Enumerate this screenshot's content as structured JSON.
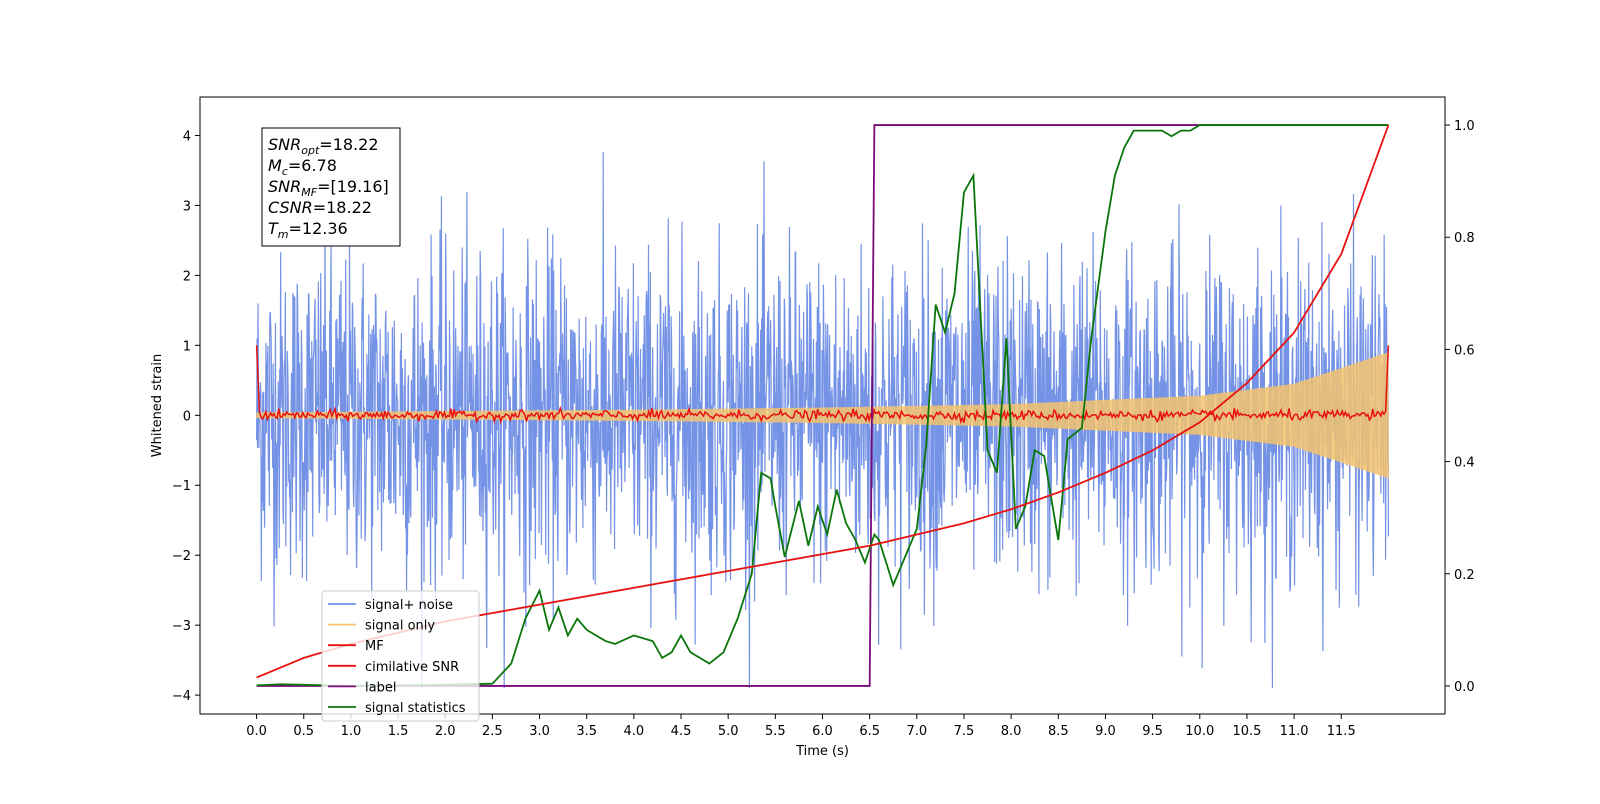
{
  "chart_data": {
    "type": "line",
    "xlabel": "Time (s)",
    "ylabel": "Whitened strain",
    "xlim": [
      -0.6,
      12.6
    ],
    "ylim_left": [
      -4.27,
      4.55
    ],
    "ylim_right": [
      -0.05,
      1.05
    ],
    "x_ticks": [
      "0.0",
      "0.5",
      "1.0",
      "1.5",
      "2.0",
      "2.5",
      "3.0",
      "3.5",
      "4.0",
      "4.5",
      "5.0",
      "5.5",
      "6.0",
      "6.5",
      "7.0",
      "7.5",
      "8.0",
      "8.5",
      "9.0",
      "9.5",
      "10.0",
      "10.5",
      "11.0",
      "11.5"
    ],
    "y_ticks_left": [
      "4",
      "3",
      "2",
      "1",
      "0",
      "−1",
      "−2",
      "−3",
      "−4"
    ],
    "y_ticks_right": [
      "1.0",
      "0.8",
      "0.6",
      "0.4",
      "0.2",
      "0.0"
    ],
    "legend_position": "lower-left",
    "grid": false,
    "annotation": {
      "lines": [
        {
          "base": "SNR",
          "sub": "opt",
          "rest": "=18.22"
        },
        {
          "base": "M",
          "sub": "c",
          "rest": "=6.78"
        },
        {
          "base": "SNR",
          "sub": "MF",
          "rest": "=[19.16]"
        },
        {
          "base": "CSNR",
          "sub": "",
          "rest": "=18.22"
        },
        {
          "base": "T",
          "sub": "m",
          "rest": "=12.36"
        }
      ]
    },
    "series": [
      {
        "name": "signal+ noise",
        "color": "#7593e6",
        "axis": "left",
        "note": "noisy whitened strain, amplitude about ±2.5 with peaks up to ±4.2, 0.0–12.0 s"
      },
      {
        "name": "signal only",
        "color": "#f5c36f",
        "axis": "left",
        "envelope": {
          "x": [
            0,
            2,
            4,
            6,
            8,
            10,
            11,
            12
          ],
          "amplitude": [
            0.04,
            0.06,
            0.08,
            0.11,
            0.16,
            0.28,
            0.45,
            0.9
          ]
        }
      },
      {
        "name": "MF",
        "color": "#e8110f",
        "axis": "left",
        "note": "near zero, noise about ±0.08, edge spikes to 1.0 at 0.0 s and 12.0 s"
      },
      {
        "name": "cimilative SNR",
        "color": "#e8110f",
        "axis": "right",
        "x": [
          0.0,
          0.5,
          1,
          1.5,
          2,
          2.5,
          3,
          3.5,
          4,
          4.5,
          5,
          5.5,
          6,
          6.5,
          7,
          7.5,
          8,
          8.5,
          9,
          9.5,
          10,
          10.5,
          11,
          11.5,
          12.0
        ],
        "y": [
          0.015,
          0.05,
          0.075,
          0.095,
          0.115,
          0.13,
          0.145,
          0.16,
          0.175,
          0.19,
          0.205,
          0.22,
          0.235,
          0.25,
          0.27,
          0.29,
          0.315,
          0.345,
          0.38,
          0.42,
          0.47,
          0.54,
          0.63,
          0.77,
          1.0
        ]
      },
      {
        "name": "label",
        "color": "#7a0b7a",
        "axis": "right",
        "x": [
          0.0,
          6.5,
          6.55,
          12.0
        ],
        "y": [
          0.0,
          0.0,
          1.0,
          1.0
        ]
      },
      {
        "name": "signal statistics",
        "color": "#0a760a",
        "axis": "right",
        "x": [
          0.0,
          0.25,
          0.5,
          1.0,
          1.5,
          2.0,
          2.5,
          2.7,
          2.85,
          3.0,
          3.1,
          3.2,
          3.3,
          3.4,
          3.5,
          3.6,
          3.7,
          3.8,
          4.0,
          4.2,
          4.3,
          4.4,
          4.5,
          4.6,
          4.7,
          4.8,
          4.95,
          5.1,
          5.25,
          5.35,
          5.45,
          5.5,
          5.6,
          5.75,
          5.85,
          5.95,
          6.05,
          6.15,
          6.25,
          6.35,
          6.45,
          6.55,
          6.6,
          6.75,
          6.85,
          7.0,
          7.1,
          7.2,
          7.3,
          7.4,
          7.5,
          7.6,
          7.75,
          7.85,
          7.95,
          8.05,
          8.15,
          8.25,
          8.35,
          8.5,
          8.6,
          8.75,
          8.85,
          9.0,
          9.1,
          9.2,
          9.3,
          9.4,
          9.5,
          9.6,
          9.7,
          9.8,
          9.9,
          10.0,
          10.3,
          10.6,
          11.0,
          11.5,
          12.0
        ],
        "y": [
          0.001,
          0.003,
          0.002,
          0.0,
          0.001,
          0.002,
          0.004,
          0.04,
          0.12,
          0.17,
          0.1,
          0.14,
          0.09,
          0.12,
          0.1,
          0.09,
          0.08,
          0.075,
          0.09,
          0.08,
          0.05,
          0.06,
          0.09,
          0.06,
          0.05,
          0.04,
          0.06,
          0.12,
          0.2,
          0.38,
          0.37,
          0.32,
          0.23,
          0.33,
          0.25,
          0.32,
          0.27,
          0.35,
          0.29,
          0.26,
          0.22,
          0.27,
          0.26,
          0.18,
          0.22,
          0.28,
          0.43,
          0.68,
          0.63,
          0.7,
          0.88,
          0.91,
          0.42,
          0.38,
          0.62,
          0.28,
          0.32,
          0.42,
          0.41,
          0.26,
          0.44,
          0.46,
          0.62,
          0.81,
          0.91,
          0.96,
          0.99,
          0.99,
          0.99,
          0.99,
          0.98,
          0.99,
          0.99,
          1.0,
          1.0,
          1.0,
          1.0,
          1.0,
          1.0
        ]
      }
    ]
  }
}
